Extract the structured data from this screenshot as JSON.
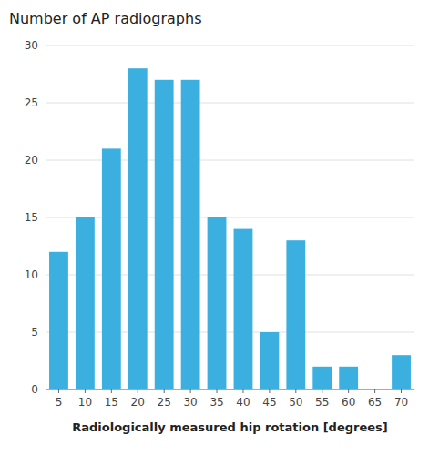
{
  "chart_data": {
    "type": "bar",
    "title": "Number of AP radiographs",
    "xlabel": "Radiologically measured hip rotation [degrees]",
    "categories": [
      5,
      10,
      15,
      20,
      25,
      30,
      35,
      40,
      45,
      50,
      55,
      60,
      65,
      70
    ],
    "values": [
      12,
      15,
      21,
      28,
      27,
      27,
      15,
      14,
      5,
      13,
      2,
      2,
      0,
      3
    ],
    "color": "#3AAFE0",
    "ylim": [
      0,
      30
    ],
    "yticks": [
      0,
      5,
      10,
      15,
      20,
      25,
      30
    ],
    "grid": true
  }
}
